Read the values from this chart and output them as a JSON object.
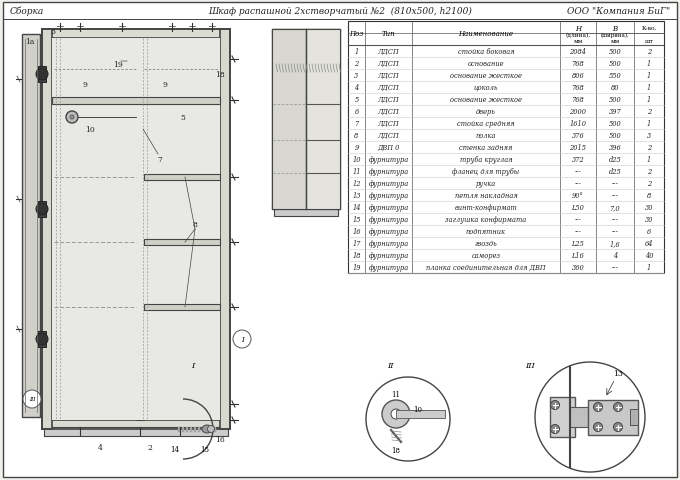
{
  "title_left": "Сборка",
  "title_center": "Шкаф распашной 2хстворчатый №2  (810x500, h2100)",
  "title_right": "ООО \"Компания БиГ\"",
  "bg_color": "#f0f0ec",
  "table_rows": [
    [
      "1",
      "ЛДСП",
      "стойка боковая",
      "2084",
      "500",
      "2"
    ],
    [
      "2",
      "ЛДСП",
      "основание",
      "768",
      "500",
      "1"
    ],
    [
      "3",
      "ЛДСП",
      "основание жесткое",
      "806",
      "550",
      "1"
    ],
    [
      "4",
      "ЛДСП",
      "цоколь",
      "768",
      "80",
      "1"
    ],
    [
      "5",
      "ЛДСП",
      "основание жесткое",
      "768",
      "500",
      "1"
    ],
    [
      "6",
      "ЛДСП",
      "дверь",
      "2000",
      "397",
      "2"
    ],
    [
      "7",
      "ЛДСП",
      "стойка средняя",
      "1610",
      "500",
      "1"
    ],
    [
      "8",
      "ЛДСП",
      "полка",
      "376",
      "500",
      "3"
    ],
    [
      "9",
      "ДВП 0",
      "стенка задняя",
      "2015",
      "396",
      "2"
    ],
    [
      "10",
      "фурнитура",
      "труба круглая",
      "372",
      "d25",
      "1"
    ],
    [
      "11",
      "фурнитура",
      "фланец для трубы",
      "---",
      "d25",
      "2"
    ],
    [
      "12",
      "фурнитура",
      "ручка",
      "---",
      "---",
      "2"
    ],
    [
      "13",
      "фурнитура",
      "петля накладная",
      "90°",
      "---",
      "8"
    ],
    [
      "14",
      "фурнитура",
      "винт-конфирмат",
      "L50",
      "7,0",
      "30"
    ],
    [
      "15",
      "фурнитура",
      "заглушка конфирмата",
      "---",
      "---",
      "30"
    ],
    [
      "16",
      "фурнитура",
      "подпятник",
      "---",
      "---",
      "6"
    ],
    [
      "17",
      "фурнитура",
      "гвоздь",
      "L25",
      "1,6",
      "64"
    ],
    [
      "18",
      "фурнитура",
      "саморез",
      "L16",
      "4",
      "40"
    ],
    [
      "19",
      "фурнитура",
      "планка соединительная для ДВП",
      "360",
      "---",
      "1"
    ]
  ]
}
